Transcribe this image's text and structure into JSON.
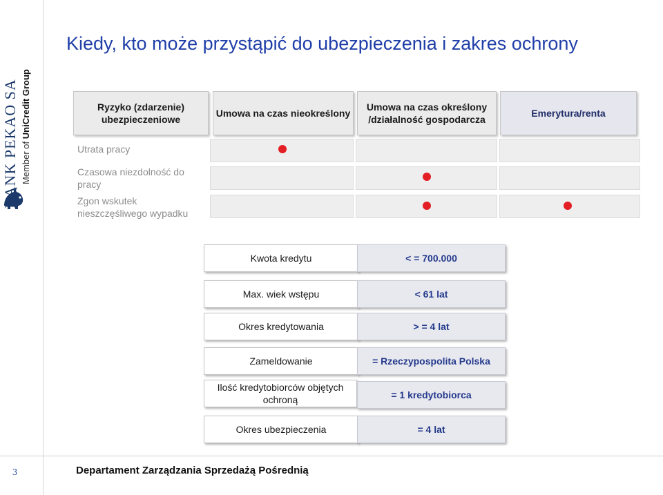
{
  "brand": {
    "bank_name": "BANK PEKAO SA",
    "member_prefix": "Member of ",
    "group_name": "UniCredit Group",
    "logo_icon": "pekao-bison-logo"
  },
  "title": "Kiedy, kto może przystąpić do ubezpieczenia i zakres ochrony",
  "risk_table": {
    "headers": [
      "Ryzyko (zdarzenie) ubezpieczeniowe",
      "Umowa na czas nieokreślony",
      "Umowa na czas określony /działalność gospodarcza",
      "Emerytura/renta"
    ],
    "rows": [
      {
        "label": "Utrata pracy",
        "covered": [
          true,
          false,
          false
        ]
      },
      {
        "label": "Czasowa niezdolność do pracy",
        "covered": [
          false,
          true,
          false
        ]
      },
      {
        "label": "Zgon wskutek nieszczęśliwego wypadku",
        "covered": [
          false,
          true,
          true
        ]
      }
    ],
    "dot_color": "#e31e24"
  },
  "conditions": [
    {
      "label": "Kwota kredytu",
      "value": "< = 700.000"
    },
    {
      "label": "Max. wiek wstępu",
      "value": "< 61 lat"
    },
    {
      "label": "Okres kredytowania",
      "value": "> = 4 lat"
    },
    {
      "label": "Zameldowanie",
      "value": "= Rzeczypospolita Polska"
    },
    {
      "label": "Ilość kredytobiorców objętych ochroną",
      "value": "= 1 kredytobiorca"
    },
    {
      "label": "Okres ubezpieczenia",
      "value": "= 4 lat"
    }
  ],
  "footer": {
    "page_number": "3",
    "department": "Departament Zarządzania Sprzedażą Pośrednią"
  },
  "colors": {
    "title": "#1f3ea8",
    "value_text": "#243a8c",
    "accent_red": "#e31e24"
  }
}
